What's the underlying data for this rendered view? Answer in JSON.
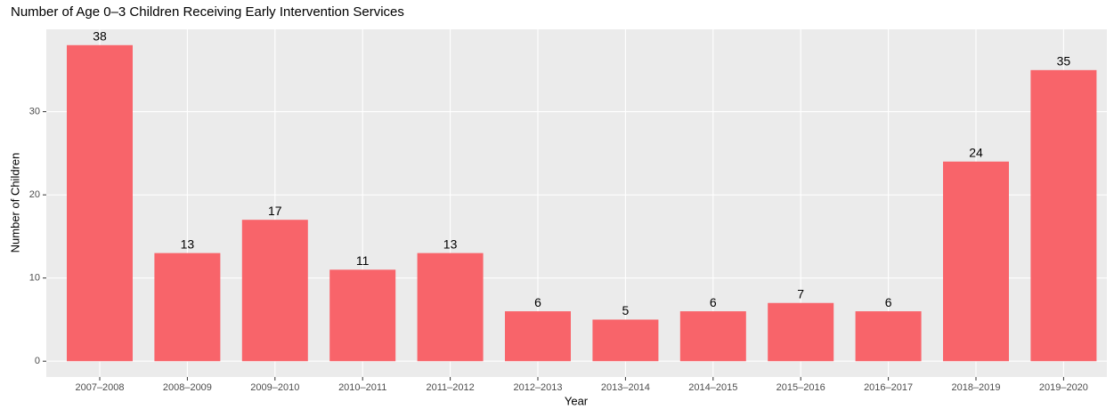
{
  "chart_data": {
    "type": "bar",
    "title": "Number of Age 0–3 Children Receiving Early Intervention Services",
    "x_label": "Year",
    "y_label": "Number of Children",
    "categories": [
      "2007–2008",
      "2008–2009",
      "2009–2010",
      "2010–2011",
      "2011–2012",
      "2012–2013",
      "2013–2014",
      "2014–2015",
      "2015–2016",
      "2016–2017",
      "2018–2019",
      "2019–2020"
    ],
    "values": [
      38,
      13,
      17,
      11,
      13,
      6,
      5,
      6,
      7,
      6,
      24,
      35
    ],
    "color": "#f8646a",
    "ylim": [
      -1.9,
      39.9
    ],
    "yticks": [
      0,
      10,
      20,
      30
    ],
    "grid": true
  }
}
